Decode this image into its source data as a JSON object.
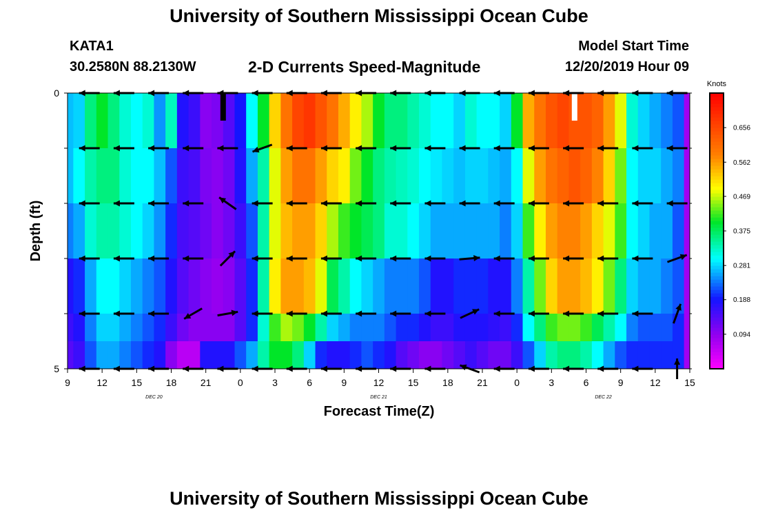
{
  "header": {
    "title": "University of Southern Mississippi Ocean Cube",
    "station": "KATA1",
    "coordinates": "30.2580N 88.2130W",
    "plot_title": "2-D Currents Speed-Magnitude",
    "model_start_label": "Model Start Time",
    "model_start_value": "12/20/2019 Hour 09"
  },
  "footer": {
    "title": "University of Southern Mississippi Ocean Cube"
  },
  "chart_data": {
    "type": "heatmap",
    "title": "2-D Currents Speed-Magnitude",
    "xlabel": "Forecast Time(Z)",
    "ylabel": "Depth (ft)",
    "xlim": [
      0,
      54
    ],
    "ylim": [
      0,
      5
    ],
    "y_inverted": true,
    "x_tick_labels": [
      "9",
      "12",
      "15",
      "18",
      "21",
      "0",
      "3",
      "6",
      "9",
      "12",
      "15",
      "18",
      "21",
      "0",
      "3",
      "6",
      "9",
      "12",
      "15"
    ],
    "y_tick_labels": [
      "0",
      "5"
    ],
    "date_labels": [
      {
        "label": "DEC 20",
        "hour": 7.5
      },
      {
        "label": "DEC 21",
        "hour": 27
      },
      {
        "label": "DEC 22",
        "hour": 46.5
      }
    ],
    "colorbar": {
      "unit": "Knots",
      "range": [
        0.0,
        0.75
      ],
      "tick_values": [
        0.094,
        0.188,
        0.281,
        0.375,
        0.469,
        0.562,
        0.656
      ],
      "tick_labels": [
        "0.094",
        "0.188",
        "0.281",
        "0.375",
        "0.469",
        "0.562",
        "0.656"
      ]
    },
    "column_hours": [
      0,
      1,
      2,
      3,
      4,
      5,
      6,
      7,
      8,
      9,
      10,
      11,
      12,
      13,
      14,
      15,
      16,
      17,
      18,
      19,
      20,
      21,
      22,
      23,
      24,
      25,
      26,
      27,
      28,
      29,
      30,
      31,
      32,
      33,
      34,
      35,
      36,
      37,
      38,
      39,
      40,
      41,
      42,
      43,
      44,
      45,
      46,
      47,
      48,
      49,
      50,
      51,
      52,
      53,
      54
    ],
    "row_depths": [
      0.25,
      1.25,
      2.25,
      3.25,
      4.25,
      4.75
    ],
    "speed_rows": [
      [
        0.27,
        0.28,
        0.36,
        0.4,
        0.36,
        0.32,
        0.3,
        0.32,
        0.25,
        0.33,
        0.18,
        0.16,
        0.1,
        0.11,
        0.14,
        0.19,
        0.3,
        0.4,
        0.52,
        0.6,
        0.66,
        0.68,
        0.64,
        0.6,
        0.55,
        0.5,
        0.46,
        0.4,
        0.36,
        0.36,
        0.34,
        0.32,
        0.3,
        0.3,
        0.28,
        0.32,
        0.3,
        0.3,
        0.28,
        0.4,
        0.55,
        0.6,
        0.64,
        0.66,
        0.64,
        0.64,
        0.62,
        0.56,
        0.48,
        0.32,
        0.28,
        0.26,
        0.24,
        0.22,
        0.08
      ],
      [
        0.27,
        0.3,
        0.34,
        0.36,
        0.36,
        0.32,
        0.3,
        0.3,
        0.27,
        0.22,
        0.16,
        0.15,
        0.11,
        0.1,
        0.12,
        0.18,
        0.26,
        0.34,
        0.48,
        0.56,
        0.6,
        0.6,
        0.56,
        0.52,
        0.5,
        0.44,
        0.4,
        0.36,
        0.34,
        0.33,
        0.32,
        0.3,
        0.29,
        0.28,
        0.27,
        0.28,
        0.28,
        0.27,
        0.26,
        0.3,
        0.48,
        0.56,
        0.6,
        0.62,
        0.64,
        0.62,
        0.58,
        0.52,
        0.44,
        0.3,
        0.28,
        0.28,
        0.26,
        0.24,
        0.08
      ],
      [
        0.24,
        0.26,
        0.32,
        0.34,
        0.34,
        0.32,
        0.3,
        0.28,
        0.25,
        0.2,
        0.15,
        0.14,
        0.12,
        0.1,
        0.12,
        0.16,
        0.22,
        0.34,
        0.48,
        0.54,
        0.56,
        0.56,
        0.52,
        0.46,
        0.42,
        0.4,
        0.38,
        0.36,
        0.32,
        0.32,
        0.3,
        0.28,
        0.26,
        0.26,
        0.26,
        0.26,
        0.26,
        0.26,
        0.24,
        0.28,
        0.42,
        0.5,
        0.56,
        0.58,
        0.58,
        0.56,
        0.52,
        0.48,
        0.42,
        0.3,
        0.28,
        0.26,
        0.26,
        0.22,
        0.08
      ],
      [
        0.18,
        0.2,
        0.26,
        0.3,
        0.3,
        0.28,
        0.26,
        0.24,
        0.22,
        0.18,
        0.14,
        0.12,
        0.1,
        0.09,
        0.1,
        0.14,
        0.2,
        0.34,
        0.5,
        0.56,
        0.56,
        0.54,
        0.48,
        0.38,
        0.34,
        0.3,
        0.28,
        0.26,
        0.24,
        0.24,
        0.24,
        0.22,
        0.18,
        0.18,
        0.2,
        0.2,
        0.2,
        0.18,
        0.18,
        0.24,
        0.34,
        0.44,
        0.52,
        0.56,
        0.56,
        0.54,
        0.5,
        0.44,
        0.36,
        0.28,
        0.26,
        0.26,
        0.24,
        0.22,
        0.08
      ],
      [
        0.16,
        0.18,
        0.24,
        0.28,
        0.28,
        0.26,
        0.24,
        0.22,
        0.2,
        0.16,
        0.12,
        0.1,
        0.1,
        0.1,
        0.1,
        0.14,
        0.2,
        0.32,
        0.42,
        0.46,
        0.44,
        0.4,
        0.34,
        0.28,
        0.26,
        0.24,
        0.24,
        0.24,
        0.22,
        0.2,
        0.2,
        0.18,
        0.16,
        0.16,
        0.18,
        0.18,
        0.18,
        0.17,
        0.16,
        0.2,
        0.3,
        0.36,
        0.42,
        0.44,
        0.44,
        0.42,
        0.38,
        0.34,
        0.3,
        0.24,
        0.22,
        0.22,
        0.22,
        0.2,
        0.08
      ],
      [
        0.14,
        0.16,
        0.22,
        0.26,
        0.26,
        0.24,
        0.22,
        0.2,
        0.18,
        0.1,
        0.06,
        0.06,
        0.18,
        0.18,
        0.18,
        0.22,
        0.26,
        0.34,
        0.4,
        0.4,
        0.36,
        0.28,
        0.2,
        0.18,
        0.18,
        0.2,
        0.22,
        0.2,
        0.18,
        0.14,
        0.12,
        0.1,
        0.1,
        0.12,
        0.14,
        0.16,
        0.14,
        0.12,
        0.12,
        0.16,
        0.22,
        0.28,
        0.34,
        0.36,
        0.36,
        0.34,
        0.3,
        0.26,
        0.22,
        0.2,
        0.2,
        0.2,
        0.2,
        0.2,
        0.08
      ]
    ],
    "vector_hours": [
      1,
      4,
      7,
      10,
      13,
      16,
      19,
      22,
      25,
      28,
      31,
      34,
      37,
      40,
      43,
      46,
      49,
      52
    ],
    "vector_depths": [
      0,
      1,
      2,
      3,
      4,
      5
    ],
    "vector_directions_deg": [
      [
        180,
        180,
        180,
        180,
        180,
        180,
        180,
        180,
        180,
        180,
        180,
        180,
        180,
        180,
        180,
        180,
        180,
        180
      ],
      [
        180,
        180,
        180,
        180,
        180,
        160,
        180,
        180,
        180,
        180,
        180,
        180,
        180,
        180,
        180,
        180,
        180,
        180
      ],
      [
        180,
        180,
        180,
        180,
        215,
        180,
        180,
        180,
        180,
        180,
        180,
        180,
        180,
        180,
        180,
        180,
        180,
        180
      ],
      [
        180,
        180,
        180,
        180,
        315,
        180,
        180,
        180,
        180,
        180,
        180,
        355,
        180,
        180,
        180,
        180,
        180,
        340
      ],
      [
        180,
        180,
        180,
        150,
        350,
        180,
        180,
        180,
        180,
        180,
        180,
        335,
        180,
        180,
        180,
        180,
        180,
        290
      ],
      [
        180,
        180,
        180,
        180,
        180,
        180,
        180,
        180,
        180,
        180,
        180,
        200,
        180,
        180,
        180,
        180,
        180,
        270
      ]
    ],
    "data_gap_markers": [
      {
        "hour": 13.5,
        "depth_top": 0,
        "depth_bottom": 0.5,
        "color": "black"
      },
      {
        "hour": 44,
        "depth_top": 0,
        "depth_bottom": 0.5,
        "color": "white"
      }
    ]
  }
}
